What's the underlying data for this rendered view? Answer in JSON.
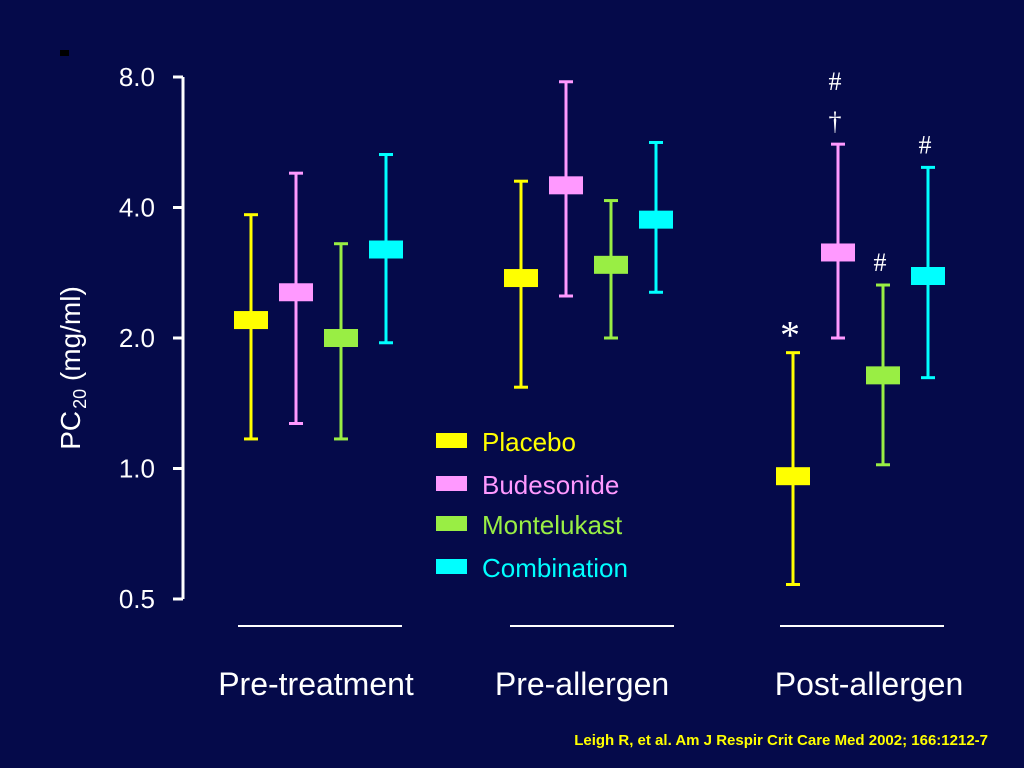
{
  "colors": {
    "background": "#050a4a",
    "axis": "#ffffff",
    "Placebo": "#ffff00",
    "Budesonide": "#ff99ff",
    "Montelukast": "#99ee44",
    "Combination": "#00ffff",
    "citation": "#ffff00"
  },
  "citation": "Leigh R, et al.  Am J Respir Crit Care Med 2002; 166:1212-7",
  "chart_data": {
    "type": "scatter",
    "title": "",
    "ylabel_main": "PC",
    "ylabel_sub": "20",
    "ylabel_unit": "(mg/ml)",
    "xlabel": "",
    "yscale": "log2",
    "ylim": [
      0.5,
      8.0
    ],
    "yticks": [
      {
        "value": 0.5,
        "label": "0.5"
      },
      {
        "value": 1.0,
        "label": "1.0"
      },
      {
        "value": 2.0,
        "label": "2.0"
      },
      {
        "value": 4.0,
        "label": "4.0"
      },
      {
        "value": 8.0,
        "label": "8.0"
      }
    ],
    "groups": [
      "Pre-treatment",
      "Pre-allergen",
      "Post-allergen"
    ],
    "legend": [
      "Placebo",
      "Budesonide",
      "Montelukast",
      "Combination"
    ],
    "legend_position": "center",
    "series": [
      {
        "name": "Placebo",
        "mean": [
          2.2,
          2.75,
          0.96
        ],
        "low": [
          1.17,
          1.54,
          0.54
        ],
        "high": [
          3.85,
          4.6,
          1.85
        ]
      },
      {
        "name": "Budesonide",
        "mean": [
          2.55,
          4.5,
          3.15
        ],
        "low": [
          1.27,
          2.5,
          2.0
        ],
        "high": [
          4.8,
          7.8,
          5.6
        ]
      },
      {
        "name": "Montelukast",
        "mean": [
          2.0,
          2.95,
          1.64
        ],
        "low": [
          1.17,
          2.0,
          1.02
        ],
        "high": [
          3.3,
          4.15,
          2.65
        ]
      },
      {
        "name": "Combination",
        "mean": [
          3.2,
          3.75,
          2.78
        ],
        "low": [
          1.95,
          2.55,
          1.62
        ],
        "high": [
          5.3,
          5.65,
          4.95
        ]
      }
    ],
    "annotations": [
      {
        "text": "*",
        "group": 2,
        "series": 0
      },
      {
        "text": "†",
        "group": 2,
        "series": 1
      },
      {
        "text": "#",
        "group": 2,
        "series": 1
      },
      {
        "text": "#",
        "group": 2,
        "series": 2
      },
      {
        "text": "#",
        "group": 2,
        "series": 3
      }
    ]
  }
}
